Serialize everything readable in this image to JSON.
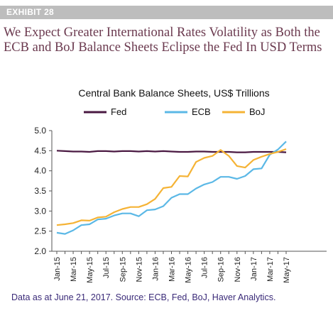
{
  "exhibit": {
    "label": "EXHIBIT 28"
  },
  "headline": "We Expect Greater International Rates Volatility as Both the ECB and BoJ Balance Sheets Eclipse the Fed In USD Terms",
  "footnote": "Data as at June 21, 2017. Source: ECB, Fed, BoJ, Haver Analytics.",
  "chart_data": {
    "type": "line",
    "title": "Central Bank Balance Sheets, US$ Trillions",
    "xlabel": "",
    "ylabel": "",
    "ylim": [
      2.0,
      5.0
    ],
    "yticks": [
      "5.0",
      "4.5",
      "4.0",
      "3.5",
      "3.0",
      "2.5",
      "2.0"
    ],
    "grid": false,
    "legend_position": "top",
    "x": [
      "Jan-15",
      "Feb-15",
      "Mar-15",
      "Apr-15",
      "May-15",
      "Jun-15",
      "Jul-15",
      "Aug-15",
      "Sep-15",
      "Oct-15",
      "Nov-15",
      "Dec-15",
      "Jan-16",
      "Feb-16",
      "Mar-16",
      "Apr-16",
      "May-16",
      "Jun-16",
      "Jul-16",
      "Aug-16",
      "Sep-16",
      "Oct-16",
      "Nov-16",
      "Dec-16",
      "Jan-17",
      "Feb-17",
      "Mar-17",
      "Apr-17",
      "May-17"
    ],
    "xtick_labels": [
      "Jan-15",
      "Mar-15",
      "May-15",
      "Jul-15",
      "Sep-15",
      "Nov-15",
      "Jan-16",
      "Mar-16",
      "May-16",
      "Jul-16",
      "Sep-16",
      "Nov-16",
      "Jan-17",
      "Mar-17",
      "May-17"
    ],
    "series": [
      {
        "name": "Fed",
        "color": "#4a1942",
        "values": [
          4.5,
          4.49,
          4.48,
          4.48,
          4.47,
          4.49,
          4.49,
          4.48,
          4.49,
          4.49,
          4.48,
          4.49,
          4.48,
          4.49,
          4.48,
          4.47,
          4.47,
          4.48,
          4.48,
          4.47,
          4.47,
          4.47,
          4.46,
          4.46,
          4.47,
          4.47,
          4.47,
          4.47,
          4.46
        ]
      },
      {
        "name": "ECB",
        "color": "#5bb8e6",
        "values": [
          2.46,
          2.43,
          2.52,
          2.65,
          2.67,
          2.79,
          2.81,
          2.89,
          2.94,
          2.94,
          2.87,
          3.02,
          3.04,
          3.12,
          3.33,
          3.42,
          3.42,
          3.56,
          3.66,
          3.72,
          3.85,
          3.85,
          3.8,
          3.87,
          4.04,
          4.06,
          4.4,
          4.53,
          4.73
        ]
      },
      {
        "name": "BoJ",
        "color": "#f5b335",
        "values": [
          2.65,
          2.67,
          2.7,
          2.77,
          2.76,
          2.84,
          2.86,
          2.97,
          3.05,
          3.1,
          3.1,
          3.17,
          3.3,
          3.57,
          3.6,
          3.87,
          3.86,
          4.22,
          4.32,
          4.37,
          4.52,
          4.37,
          4.12,
          4.08,
          4.27,
          4.35,
          4.42,
          4.47,
          4.54
        ]
      }
    ]
  }
}
